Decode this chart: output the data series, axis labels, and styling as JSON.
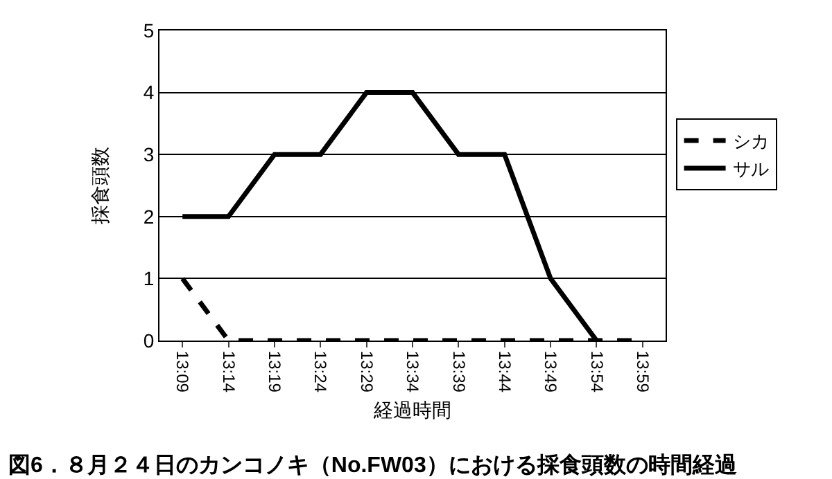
{
  "chart_data": {
    "type": "line",
    "title": "図6．８月２４日のカンコノキ（No.FW03）における採食頭数の時間経過",
    "xlabel": "経過時間",
    "ylabel": "採食頭数",
    "categories": [
      "13:09",
      "13:14",
      "13:19",
      "13:24",
      "13:29",
      "13:34",
      "13:39",
      "13:44",
      "13:49",
      "13:54",
      "13:59"
    ],
    "series": [
      {
        "name": "シカ",
        "color": "#000000",
        "line_style": "dashed",
        "values": [
          1,
          0,
          0,
          0,
          0,
          0,
          0,
          0,
          0,
          0,
          0
        ]
      },
      {
        "name": "サル",
        "color": "#000000",
        "line_style": "solid",
        "values": [
          2,
          2,
          3,
          3,
          4,
          4,
          3,
          3,
          1,
          0,
          null
        ]
      }
    ],
    "ylim": [
      0,
      5
    ],
    "yticks": [
      0,
      1,
      2,
      3,
      4,
      5
    ],
    "grid": "y",
    "legend": "right",
    "marker": "none"
  }
}
